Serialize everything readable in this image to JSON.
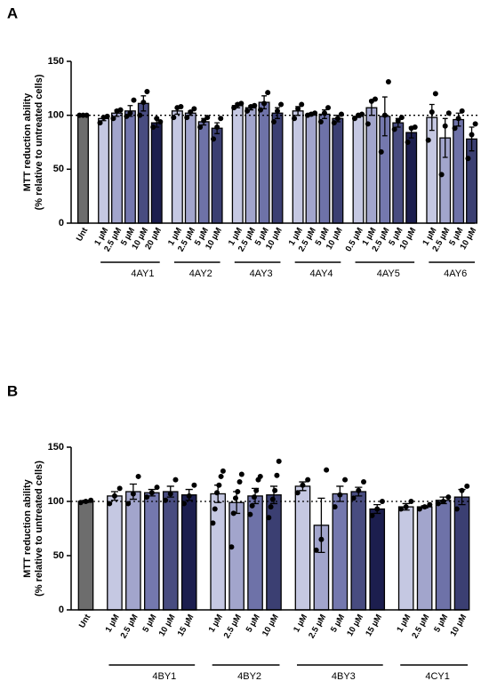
{
  "chart_data": [
    {
      "type": "bar",
      "panel": "A",
      "ylabel": [
        "MTT reduction ability",
        "(% relative to untreated cells)"
      ],
      "ylim": [
        0,
        150
      ],
      "yticks": [
        0,
        50,
        100,
        150
      ],
      "refline": 100,
      "groups": [
        {
          "name": null,
          "categories": [
            "Unt"
          ],
          "values": [
            100
          ],
          "errors": [
            1
          ],
          "points": [
            [
              100,
              100,
              100
            ]
          ],
          "colors": [
            "#6d6d6d"
          ]
        },
        {
          "name": "4AY1",
          "categories": [
            "1 µM",
            "2.5 µM",
            "5 µM",
            "10 µM",
            "20 µM"
          ],
          "values": [
            97,
            102,
            104,
            111,
            93
          ],
          "errors": [
            2,
            3,
            5,
            7,
            4
          ],
          "points": [
            [
              93,
              98,
              99
            ],
            [
              97,
              104,
              105
            ],
            [
              99,
              102,
              114
            ],
            [
              100,
              112,
              122
            ],
            [
              89,
              97,
              94
            ]
          ],
          "colors": [
            "#c5c8e2",
            "#a2a5cc",
            "#7478ae",
            "#484c80",
            "#1c1e4e"
          ]
        },
        {
          "name": "4AY2",
          "categories": [
            "1 µM",
            "2.5 µM",
            "5 µM",
            "10 µM"
          ],
          "values": [
            104,
            102,
            94,
            88
          ],
          "errors": [
            3,
            2,
            3,
            5
          ],
          "points": [
            [
              98,
              107,
              108
            ],
            [
              98,
              103,
              106
            ],
            [
              89,
              95,
              98
            ],
            [
              78,
              89,
              97
            ]
          ],
          "colors": [
            "#c5c8e2",
            "#a2a5cc",
            "#6e72a8",
            "#3b3f72"
          ]
        },
        {
          "name": "4AY3",
          "categories": [
            "1 µM",
            "2.5 µM",
            "5 µM",
            "10 µM"
          ],
          "values": [
            109,
            107,
            112,
            102
          ],
          "errors": [
            2,
            2,
            6,
            5
          ],
          "points": [
            [
              107,
              110,
              111
            ],
            [
              104,
              108,
              109
            ],
            [
              105,
              111,
              121
            ],
            [
              94,
              104,
              110
            ]
          ],
          "colors": [
            "#c5c8e2",
            "#a2a5cc",
            "#6e72a8",
            "#3b3f72"
          ]
        },
        {
          "name": "4AY4",
          "categories": [
            "1 µM",
            "2.5 µM",
            "5 µM",
            "10 µM"
          ],
          "values": [
            104,
            101,
            101,
            97
          ],
          "errors": [
            4,
            1,
            4,
            3
          ],
          "points": [
            [
              97,
              106,
              110
            ],
            [
              100,
              101,
              102
            ],
            [
              94,
              102,
              107
            ],
            [
              93,
              97,
              101
            ]
          ],
          "colors": [
            "#c5c8e2",
            "#a2a5cc",
            "#6e72a8",
            "#3b3f72"
          ]
        },
        {
          "name": "4AY5",
          "categories": [
            "0.5 µM",
            "1 µM",
            "2.5 µM",
            "5 µM",
            "10 µM"
          ],
          "values": [
            99,
            107,
            99,
            93,
            84
          ],
          "errors": [
            1,
            7,
            18,
            4,
            5
          ],
          "points": [
            [
              97,
              100,
              101
            ],
            [
              92,
              113,
              115
            ],
            [
              66,
              100,
              131
            ],
            [
              87,
              95,
              98
            ],
            [
              75,
              88,
              89
            ]
          ],
          "colors": [
            "#c5c8e2",
            "#a2a5cc",
            "#7478ae",
            "#484c80",
            "#1c1e4e"
          ]
        },
        {
          "name": "4AY6",
          "categories": [
            "1 µM",
            "2.5 µM",
            "5 µM",
            "10 µM"
          ],
          "values": [
            98,
            79,
            96,
            78
          ],
          "errors": [
            12,
            18,
            6,
            11
          ],
          "points": [
            [
              77,
              103,
              120
            ],
            [
              45,
              90,
              102
            ],
            [
              88,
              97,
              104
            ],
            [
              60,
              82,
              92
            ]
          ],
          "colors": [
            "#c5c8e2",
            "#a2a5cc",
            "#6e72a8",
            "#3b3f72"
          ]
        }
      ]
    },
    {
      "type": "bar",
      "panel": "B",
      "ylabel": [
        "MTT reduction ability",
        "(% relative to untreated cells)"
      ],
      "ylim": [
        0,
        150
      ],
      "yticks": [
        0,
        50,
        100,
        150
      ],
      "refline": 100,
      "groups": [
        {
          "name": null,
          "categories": [
            "Unt"
          ],
          "values": [
            100
          ],
          "errors": [
            1
          ],
          "points": [
            [
              99,
              100,
              101
            ]
          ],
          "colors": [
            "#6d6d6d"
          ]
        },
        {
          "name": "4BY1",
          "categories": [
            "1 µM",
            "2.5 µM",
            "5 µM",
            "10 µM",
            "15 µM"
          ],
          "values": [
            105,
            109,
            108,
            109,
            106
          ],
          "errors": [
            4,
            7,
            3,
            5,
            5
          ],
          "points": [
            [
              98,
              105,
              112
            ],
            [
              98,
              107,
              123
            ],
            [
              104,
              108,
              113
            ],
            [
              101,
              107,
              120
            ],
            [
              98,
              105,
              115
            ]
          ],
          "colors": [
            "#c5c8e2",
            "#a2a5cc",
            "#7478ae",
            "#484c80",
            "#1c1e4e"
          ]
        },
        {
          "name": "4BY2",
          "categories": [
            "1 µM",
            "2.5 µM",
            "5 µM",
            "10 µM"
          ],
          "values": [
            107,
            99,
            105,
            106
          ],
          "errors": [
            8,
            10,
            7,
            8
          ],
          "points": [
            [
              80,
              93,
              108,
              115,
              123,
              128
            ],
            [
              58,
              89,
              103,
              109,
              118,
              125
            ],
            [
              88,
              96,
              104,
              110,
              120,
              123
            ],
            [
              85,
              95,
              102,
              110,
              124,
              137
            ]
          ],
          "colors": [
            "#c5c8e2",
            "#a2a5cc",
            "#6e72a8",
            "#3b3f72"
          ]
        },
        {
          "name": "4BY3",
          "categories": [
            "1 µM",
            "2.5 µM",
            "5 µM",
            "10 µM",
            "15 µM"
          ],
          "values": [
            114,
            78,
            107,
            109,
            93
          ],
          "errors": [
            4,
            25,
            7,
            4,
            4
          ],
          "points": [
            [
              108,
              115,
              120
            ],
            [
              55,
              65,
              129
            ],
            [
              95,
              106,
              120
            ],
            [
              103,
              110,
              118
            ],
            [
              87,
              93,
              100
            ]
          ],
          "colors": [
            "#c5c8e2",
            "#a2a5cc",
            "#7478ae",
            "#484c80",
            "#1c1e4e"
          ]
        },
        {
          "name": "4CY1",
          "categories": [
            "1 µM",
            "2.5 µM",
            "5 µM",
            "10 µM"
          ],
          "values": [
            95,
            95,
            101,
            104
          ],
          "errors": [
            3,
            1,
            3,
            7
          ],
          "points": [
            [
              93,
              95,
              100
            ],
            [
              93,
              95,
              97
            ],
            [
              98,
              100,
              104
            ],
            [
              93,
              110,
              114
            ]
          ],
          "colors": [
            "#c5c8e2",
            "#a2a5cc",
            "#6e72a8",
            "#3b3f72"
          ]
        }
      ]
    }
  ]
}
